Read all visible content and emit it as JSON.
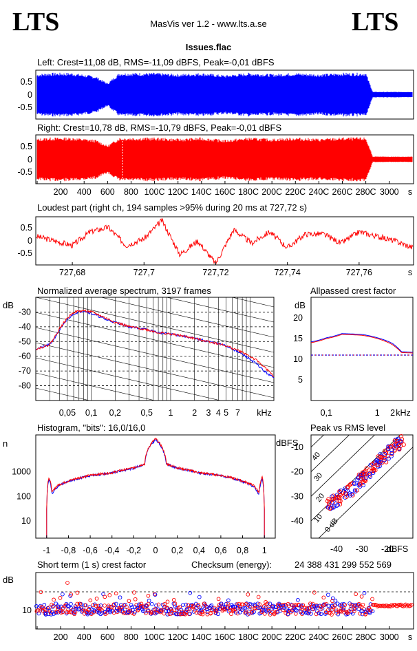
{
  "header": {
    "logo_left": "LTS",
    "logo_right": "LTS",
    "app_title": "MasVis ver 1.2 - www.lts.a.se",
    "file_name": "Issues.flac"
  },
  "colors": {
    "left": "#0000ff",
    "right": "#ff0000",
    "axis": "#000000"
  },
  "chart_data": [
    {
      "id": "left-waveform",
      "type": "area",
      "title": "Left: Crest=11,08 dB, RMS=-11,09 dBFS, Peak=-0,01 dBFS",
      "yticks": [
        "0.5",
        "0",
        "-0.5"
      ],
      "ylim": [
        -1,
        1
      ],
      "xlim": [
        0,
        3195
      ],
      "x": [
        0,
        100,
        300,
        500,
        600,
        700,
        800,
        1000,
        1200,
        1400,
        1600,
        1800,
        2000,
        2200,
        2400,
        2600,
        2800,
        2860,
        3000,
        3195
      ],
      "values": [
        0.9,
        0.95,
        0.95,
        0.8,
        0.5,
        0.95,
        0.95,
        0.95,
        0.9,
        0.95,
        0.85,
        0.95,
        0.9,
        0.95,
        0.9,
        0.95,
        0.95,
        0.12,
        0.12,
        0.12
      ]
    },
    {
      "id": "right-waveform",
      "type": "area",
      "title": "Right: Crest=10,78 dB, RMS=-10,79 dBFS, Peak=-0,01 dBFS",
      "yticks": [
        "0.5",
        "0",
        "-0.5"
      ],
      "ylim": [
        -1,
        1
      ],
      "xlim": [
        0,
        3195
      ],
      "xticks": [
        "200",
        "400",
        "600",
        "800",
        "100C",
        "120C",
        "140C",
        "160C",
        "180C",
        "200C",
        "220C",
        "240C",
        "260C",
        "280C",
        "3000"
      ],
      "xunit": "s",
      "x": [
        0,
        100,
        300,
        500,
        600,
        700,
        800,
        1000,
        1200,
        1400,
        1600,
        1800,
        2000,
        2200,
        2400,
        2600,
        2800,
        2860,
        3000,
        3195
      ],
      "values": [
        0.9,
        0.95,
        0.95,
        0.85,
        0.6,
        0.95,
        0.95,
        0.95,
        0.9,
        0.95,
        0.85,
        0.95,
        0.9,
        0.95,
        0.9,
        0.95,
        0.95,
        0.12,
        0.12,
        0.12
      ],
      "marker_x": 727.72
    },
    {
      "id": "loudest-part",
      "type": "line",
      "title": "Loudest part (right ch, 194 samples >95% during 20 ms at 727,72 s)",
      "yticks": [
        "0.5",
        "0",
        "-0.5"
      ],
      "ylim": [
        -1,
        1
      ],
      "xlim": [
        727.67,
        727.775
      ],
      "xticks": [
        "727,68",
        "727,7",
        "727,72",
        "727,74",
        "727,76"
      ],
      "xunit": "s",
      "x": [
        727.67,
        727.68,
        727.685,
        727.69,
        727.695,
        727.7,
        727.705,
        727.71,
        727.715,
        727.72,
        727.725,
        727.73,
        727.735,
        727.74,
        727.745,
        727.75,
        727.755,
        727.76,
        727.765,
        727.77,
        727.775
      ],
      "values": [
        0.2,
        -0.2,
        0.4,
        0.6,
        -0.2,
        0.1,
        0.9,
        -0.6,
        0.0,
        -1.0,
        0.5,
        -0.1,
        0.4,
        -0.3,
        0.3,
        0.3,
        -0.1,
        0.4,
        0.2,
        0.0,
        -0.3
      ]
    },
    {
      "id": "average-spectrum",
      "type": "line",
      "title": "Normalized average spectrum, 3197 frames",
      "ylabel": "dB",
      "yticks": [
        "-30",
        "-40",
        "-50",
        "-60",
        "-70",
        "-80"
      ],
      "ylim": [
        -90,
        -20
      ],
      "xticks": [
        "0,05",
        "0,1",
        "0,2",
        "0,5",
        "1",
        "2",
        "3",
        "4",
        "5",
        "7"
      ],
      "xunit": "kHz",
      "xlim": [
        0.02,
        20
      ],
      "x": [
        0.02,
        0.03,
        0.04,
        0.05,
        0.06,
        0.08,
        0.1,
        0.15,
        0.2,
        0.3,
        0.5,
        0.7,
        1,
        2,
        3,
        5,
        7,
        10,
        15,
        20
      ],
      "series": [
        {
          "color": "blue",
          "values": [
            -55,
            -52,
            -42,
            -35,
            -31,
            -29,
            -31,
            -35,
            -37,
            -40,
            -42,
            -44,
            -45,
            -48,
            -50,
            -53,
            -57,
            -62,
            -70,
            -75
          ]
        },
        {
          "color": "red",
          "values": [
            -55,
            -52,
            -41,
            -34,
            -30,
            -29,
            -30,
            -34,
            -37,
            -40,
            -42,
            -44,
            -45,
            -48,
            -50,
            -53,
            -56,
            -60,
            -67,
            -74
          ]
        }
      ]
    },
    {
      "id": "allpassed-crest",
      "type": "line",
      "title": "Allpassed crest factor",
      "ylabel": "dB",
      "yticks": [
        "20",
        "15",
        "10",
        "5"
      ],
      "ylim": [
        0,
        25
      ],
      "xticks": [
        "0,1",
        "1",
        "2"
      ],
      "xunit": "kHz",
      "xlim": [
        0.05,
        5
      ],
      "x": [
        0.05,
        0.1,
        0.2,
        0.5,
        1,
        2,
        3,
        5
      ],
      "series": [
        {
          "color": "blue",
          "values": [
            14.2,
            15.2,
            16.2,
            16.0,
            15.2,
            13.8,
            11.8,
            11.7
          ]
        },
        {
          "color": "red",
          "values": [
            14.0,
            15.0,
            16.0,
            15.8,
            15.0,
            13.5,
            11.6,
            11.5
          ]
        }
      ],
      "reference_line": 11
    },
    {
      "id": "histogram",
      "type": "line",
      "title": "Histogram, \"bits\": 16,0/16,0",
      "ylabel": "n",
      "yticks": [
        "1000",
        "100",
        "10"
      ],
      "xticks": [
        "-1",
        "-0,8",
        "-0,6",
        "-0,4",
        "-0,2",
        "0",
        "0,2",
        "0,4",
        "0,6",
        "0,8",
        "1"
      ],
      "xlim": [
        -1.1,
        1.1
      ],
      "x": [
        -1.0,
        -0.98,
        -0.95,
        -0.9,
        -0.8,
        -0.6,
        -0.4,
        -0.2,
        -0.1,
        0,
        0.1,
        0.2,
        0.4,
        0.6,
        0.8,
        0.9,
        0.95,
        0.98,
        1.0
      ],
      "series": [
        {
          "color": "blue",
          "values": [
            30,
            500,
            120,
            250,
            400,
            700,
            900,
            1400,
            2000,
            20000,
            2000,
            1400,
            900,
            700,
            400,
            250,
            120,
            500,
            30
          ]
        },
        {
          "color": "red",
          "values": [
            30,
            600,
            140,
            280,
            420,
            720,
            920,
            1450,
            2100,
            22000,
            2100,
            1450,
            920,
            720,
            420,
            280,
            140,
            600,
            30
          ]
        }
      ]
    },
    {
      "id": "peak-vs-rms",
      "type": "scatter",
      "title": "Peak vs RMS level",
      "ylabel": "dBFS",
      "yticks": [
        "-10",
        "-20",
        "-30",
        "-40"
      ],
      "xticks": [
        "-40",
        "-30",
        "-20"
      ],
      "xlabel": "dBFS",
      "crest_labels": [
        "40",
        "30",
        "20",
        "10",
        "0 dB"
      ],
      "xlim": [
        -50,
        -10
      ],
      "ylim": [
        -47,
        -5
      ],
      "x": [
        -48,
        -46,
        -44,
        -42,
        -40,
        -38,
        -36,
        -34,
        -32,
        -30,
        -28,
        -26,
        -24,
        -22,
        -20,
        -18,
        -16,
        -14,
        -12
      ],
      "values": [
        -38,
        -36,
        -34,
        -33,
        -31,
        -30,
        -28,
        -27,
        -25,
        -23,
        -21,
        -19,
        -17,
        -15,
        -13,
        -11,
        -9,
        -7,
        -6
      ]
    },
    {
      "id": "short-term-crest",
      "type": "scatter",
      "title": "Short term (1 s) crest factor",
      "ylabel": "dB",
      "yticks": [
        "10"
      ],
      "xlim": [
        0,
        3195
      ],
      "xticks": [
        "200",
        "400",
        "600",
        "800",
        "100C",
        "120C",
        "140C",
        "160C",
        "180C",
        "200C",
        "220C",
        "240C",
        "260C",
        "280C",
        "3000"
      ],
      "xunit": "s",
      "reference_line": 13
    }
  ],
  "checksum": {
    "label": "Checksum (energy):",
    "value": "24 388 431 299 552 569"
  }
}
